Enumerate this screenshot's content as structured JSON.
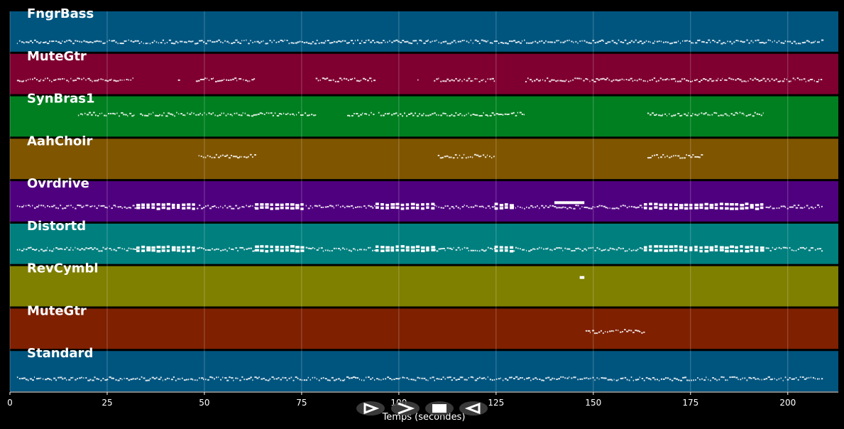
{
  "chart_data": {
    "type": "piano-roll",
    "xlabel": "Temps (secondes)",
    "xlim": [
      0,
      213
    ],
    "xticks": [
      0,
      25,
      50,
      75,
      100,
      125,
      150,
      175,
      200
    ],
    "grid": true,
    "tracks": [
      {
        "name": "FngrBass",
        "color": "#00557f",
        "segments": [
          [
            1.8,
            208.8
          ]
        ],
        "dense": []
      },
      {
        "name": "MuteGtr",
        "color": "#7f0030",
        "segments": [
          [
            1.8,
            32
          ],
          [
            43.2,
            43.6
          ],
          [
            47.8,
            63
          ],
          [
            78.6,
            93.6
          ],
          [
            104.8,
            105.2
          ],
          [
            109,
            124.6
          ],
          [
            132.5,
            208.8
          ]
        ],
        "dense": []
      },
      {
        "name": "SynBras1",
        "color": "#007f20",
        "segments": [
          [
            17.5,
            32
          ],
          [
            33.4,
            78.8
          ],
          [
            86.7,
            93.6
          ],
          [
            94.7,
            132.5
          ],
          [
            163.9,
            194
          ]
        ],
        "dense": []
      },
      {
        "name": "AahChoir",
        "color": "#7f5500",
        "segments": [
          [
            48.5,
            63
          ],
          [
            110,
            124.6
          ],
          [
            163.9,
            178
          ]
        ],
        "dense": []
      },
      {
        "name": "Ovrdrive",
        "color": "#4f007f",
        "segments": [
          [
            1.8,
            208.8
          ]
        ],
        "dense": [
          [
            32.5,
            47.5
          ],
          [
            63,
            75.5
          ],
          [
            94,
            109
          ],
          [
            124.6,
            128.8
          ],
          [
            163,
            194
          ]
        ],
        "long_notes": [
          [
            140,
            147.7
          ]
        ]
      },
      {
        "name": "Distortd",
        "color": "#007f7f",
        "segments": [
          [
            1.8,
            208.8
          ]
        ],
        "dense": [
          [
            32.5,
            47.5
          ],
          [
            63,
            75.5
          ],
          [
            94,
            109
          ],
          [
            124.6,
            128.8
          ],
          [
            163,
            194
          ]
        ]
      },
      {
        "name": "RevCymbl",
        "color": "#7f7f00",
        "segments": [],
        "dense": [],
        "long_notes": [
          [
            146.5,
            147.7
          ]
        ]
      },
      {
        "name": "MuteGtr",
        "color": "#7f2000",
        "segments": [
          [
            148,
            163
          ]
        ],
        "dense": []
      },
      {
        "name": "Standard",
        "color": "#00557f",
        "segments": [
          [
            1.8,
            208.8
          ]
        ],
        "dense": []
      }
    ]
  },
  "controls": [
    {
      "name": "play",
      "icon": "play-icon"
    },
    {
      "name": "fast-forward",
      "icon": "chevron-right-icon"
    },
    {
      "name": "stop",
      "icon": "stop-icon"
    },
    {
      "name": "rewind",
      "icon": "rewind-icon"
    }
  ]
}
